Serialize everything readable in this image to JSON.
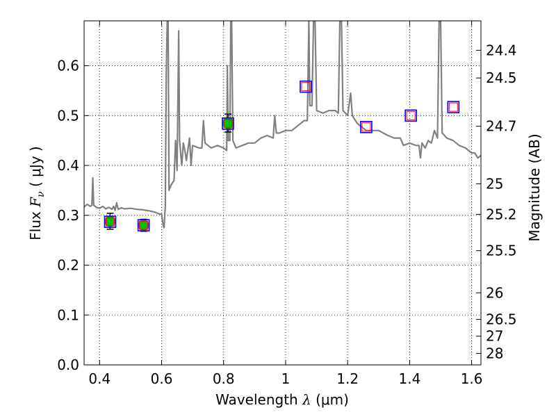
{
  "chart_data": {
    "type": "scatter",
    "xlabel": {
      "prefix": "Wavelength  ",
      "symbol": "λ",
      "suffix": " (μm)"
    },
    "ylabel": {
      "prefix": "Flux  ",
      "symbol": "F",
      "subscript": "ν",
      "suffix": "  ( μJy )"
    },
    "y2label": "Magnitude (AB)",
    "xlim": [
      0.35,
      1.63
    ],
    "ylim": [
      0.0,
      0.69
    ],
    "grid": true,
    "x_ticks": [
      0.4,
      0.6,
      0.8,
      1.0,
      1.2,
      1.4,
      1.6
    ],
    "x_tick_labels": [
      "0.4",
      "0.6",
      "0.8",
      "1",
      "1.2",
      "1.4",
      "1.6"
    ],
    "y_ticks": [
      0.0,
      0.1,
      0.2,
      0.3,
      0.4,
      0.5,
      0.6
    ],
    "y_tick_labels": [
      "0.0",
      "0.1",
      "0.2",
      "0.3",
      "0.4",
      "0.5",
      "0.6"
    ],
    "magnitude_ticks": [
      "24.4",
      "24.5",
      "24.7",
      "25",
      "25.2",
      "25.5",
      "26",
      "26.5",
      "27",
      "28"
    ],
    "colors": {
      "spectrum": "#808080",
      "observed_marker": "#00bb00",
      "model_box": "#0000ff",
      "model_inner": "#ff0000",
      "errorbar": "#000000"
    },
    "series": [
      {
        "kind": "line",
        "points": [
          [
            0.35,
            0.317
          ],
          [
            0.36,
            0.322
          ],
          [
            0.37,
            0.318
          ],
          [
            0.375,
            0.32
          ],
          [
            0.378,
            0.375
          ],
          [
            0.381,
            0.32
          ],
          [
            0.39,
            0.316
          ],
          [
            0.4,
            0.314
          ],
          [
            0.41,
            0.318
          ],
          [
            0.42,
            0.313
          ],
          [
            0.43,
            0.316
          ],
          [
            0.44,
            0.312
          ],
          [
            0.445,
            0.318
          ],
          [
            0.45,
            0.31
          ],
          [
            0.455,
            0.325
          ],
          [
            0.46,
            0.312
          ],
          [
            0.47,
            0.315
          ],
          [
            0.48,
            0.313
          ],
          [
            0.5,
            0.314
          ],
          [
            0.52,
            0.312
          ],
          [
            0.54,
            0.311
          ],
          [
            0.56,
            0.309
          ],
          [
            0.58,
            0.306
          ],
          [
            0.59,
            0.303
          ],
          [
            0.6,
            0.302
          ],
          [
            0.605,
            0.28
          ],
          [
            0.608,
            0.275
          ],
          [
            0.612,
            0.32
          ],
          [
            0.615,
            0.58
          ],
          [
            0.618,
            0.69
          ],
          [
            0.621,
            0.69
          ],
          [
            0.624,
            0.35
          ],
          [
            0.63,
            0.36
          ],
          [
            0.64,
            0.37
          ],
          [
            0.645,
            0.45
          ],
          [
            0.65,
            0.39
          ],
          [
            0.655,
            0.67
          ],
          [
            0.658,
            0.45
          ],
          [
            0.665,
            0.4
          ],
          [
            0.67,
            0.445
          ],
          [
            0.675,
            0.43
          ],
          [
            0.68,
            0.41
          ],
          [
            0.69,
            0.455
          ],
          [
            0.695,
            0.4
          ],
          [
            0.7,
            0.44
          ],
          [
            0.72,
            0.435
          ],
          [
            0.73,
            0.435
          ],
          [
            0.735,
            0.49
          ],
          [
            0.74,
            0.445
          ],
          [
            0.76,
            0.435
          ],
          [
            0.78,
            0.44
          ],
          [
            0.8,
            0.435
          ],
          [
            0.81,
            0.43
          ],
          [
            0.812,
            0.6
          ],
          [
            0.815,
            0.45
          ],
          [
            0.82,
            0.45
          ],
          [
            0.823,
            0.69
          ],
          [
            0.826,
            0.69
          ],
          [
            0.83,
            0.45
          ],
          [
            0.84,
            0.435
          ],
          [
            0.86,
            0.44
          ],
          [
            0.88,
            0.445
          ],
          [
            0.9,
            0.445
          ],
          [
            0.92,
            0.455
          ],
          [
            0.94,
            0.46
          ],
          [
            0.96,
            0.455
          ],
          [
            0.965,
            0.5
          ],
          [
            0.97,
            0.465
          ],
          [
            0.98,
            0.465
          ],
          [
            1.0,
            0.47
          ],
          [
            1.02,
            0.47
          ],
          [
            1.04,
            0.48
          ],
          [
            1.06,
            0.49
          ],
          [
            1.07,
            0.49
          ],
          [
            1.075,
            0.69
          ],
          [
            1.078,
            0.52
          ],
          [
            1.085,
            0.52
          ],
          [
            1.09,
            0.69
          ],
          [
            1.095,
            0.69
          ],
          [
            1.1,
            0.51
          ],
          [
            1.12,
            0.505
          ],
          [
            1.14,
            0.51
          ],
          [
            1.16,
            0.51
          ],
          [
            1.17,
            0.505
          ],
          [
            1.175,
            0.69
          ],
          [
            1.18,
            0.69
          ],
          [
            1.185,
            0.51
          ],
          [
            1.2,
            0.5
          ],
          [
            1.21,
            0.545
          ],
          [
            1.215,
            0.5
          ],
          [
            1.23,
            0.485
          ],
          [
            1.26,
            0.47
          ],
          [
            1.28,
            0.47
          ],
          [
            1.3,
            0.47
          ],
          [
            1.33,
            0.46
          ],
          [
            1.35,
            0.455
          ],
          [
            1.37,
            0.455
          ],
          [
            1.38,
            0.44
          ],
          [
            1.4,
            0.445
          ],
          [
            1.42,
            0.44
          ],
          [
            1.43,
            0.44
          ],
          [
            1.435,
            0.415
          ],
          [
            1.44,
            0.445
          ],
          [
            1.45,
            0.435
          ],
          [
            1.46,
            0.45
          ],
          [
            1.47,
            0.445
          ],
          [
            1.48,
            0.47
          ],
          [
            1.49,
            0.455
          ],
          [
            1.495,
            0.69
          ],
          [
            1.5,
            0.69
          ],
          [
            1.505,
            0.465
          ],
          [
            1.52,
            0.455
          ],
          [
            1.54,
            0.45
          ],
          [
            1.56,
            0.44
          ],
          [
            1.58,
            0.435
          ],
          [
            1.6,
            0.425
          ],
          [
            1.61,
            0.425
          ],
          [
            1.62,
            0.415
          ],
          [
            1.63,
            0.42
          ]
        ]
      },
      {
        "kind": "points",
        "x": [
          0.434,
          0.542,
          0.814
        ],
        "y": [
          0.288,
          0.28,
          0.485
        ],
        "yerr": [
          0.016,
          0.012,
          0.018
        ]
      },
      {
        "kind": "boxes",
        "x": [
          0.434,
          0.542,
          0.814,
          1.065,
          1.26,
          1.404,
          1.541
        ],
        "y": [
          0.287,
          0.28,
          0.484,
          0.558,
          0.477,
          0.5,
          0.517
        ]
      }
    ]
  }
}
